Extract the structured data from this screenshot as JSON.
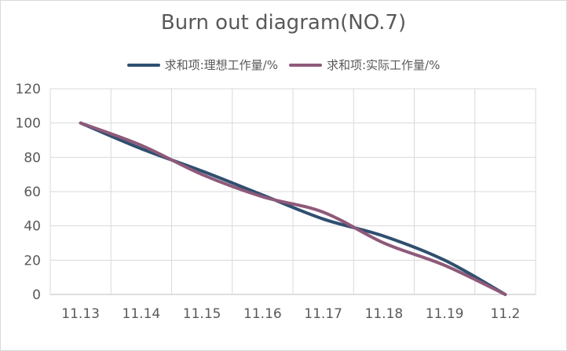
{
  "chart_data": {
    "type": "line",
    "title": "Burn out diagram(NO.7)",
    "xlabel": "",
    "ylabel": "",
    "categories": [
      "11.13",
      "11.14",
      "11.15",
      "11.16",
      "11.17",
      "11.18",
      "11.19",
      "11.2"
    ],
    "ylim": [
      0,
      120
    ],
    "yticks": [
      0,
      20,
      40,
      60,
      80,
      100,
      120
    ],
    "grid": true,
    "legend_position": "top",
    "series": [
      {
        "name": "求和项:理想工作量/%",
        "color": "#2f4f6f",
        "values": [
          100,
          85,
          72,
          58,
          44,
          34,
          20,
          0
        ]
      },
      {
        "name": "求和项:实际工作量/%",
        "color": "#8e5a7a",
        "values": [
          100,
          87,
          70,
          57,
          48,
          30,
          17,
          0
        ]
      }
    ]
  }
}
